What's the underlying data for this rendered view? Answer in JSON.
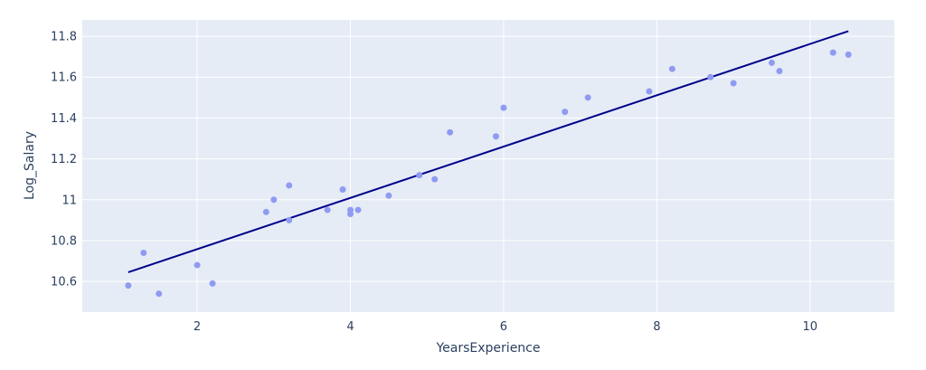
{
  "chart_data": {
    "type": "scatter",
    "title": "",
    "xlabel": "YearsExperience",
    "ylabel": "Log_Salary",
    "xlim": [
      0.5,
      11.1
    ],
    "ylim": [
      10.45,
      11.88
    ],
    "x_ticks": [
      2,
      4,
      6,
      8,
      10
    ],
    "x_tick_labels": [
      "2",
      "4",
      "6",
      "8",
      "10"
    ],
    "y_ticks": [
      10.6,
      10.8,
      11.0,
      11.2,
      11.4,
      11.6,
      11.8
    ],
    "y_tick_labels": [
      "10.6",
      "10.8",
      "11",
      "11.2",
      "11.4",
      "11.6",
      "11.8"
    ],
    "grid": true,
    "legend": "none",
    "series": [
      {
        "kind": "scatter",
        "color": "#8f9bf2",
        "points": [
          [
            1.1,
            10.58
          ],
          [
            1.3,
            10.74
          ],
          [
            1.5,
            10.54
          ],
          [
            2.0,
            10.68
          ],
          [
            2.2,
            10.59
          ],
          [
            2.9,
            10.94
          ],
          [
            3.0,
            11.0
          ],
          [
            3.2,
            11.07
          ],
          [
            3.2,
            10.9
          ],
          [
            3.7,
            10.95
          ],
          [
            3.9,
            11.05
          ],
          [
            4.0,
            10.95
          ],
          [
            4.0,
            10.93
          ],
          [
            4.1,
            10.95
          ],
          [
            4.5,
            11.02
          ],
          [
            4.9,
            11.12
          ],
          [
            5.1,
            11.1
          ],
          [
            5.3,
            11.33
          ],
          [
            5.9,
            11.31
          ],
          [
            6.0,
            11.45
          ],
          [
            6.8,
            11.43
          ],
          [
            7.1,
            11.5
          ],
          [
            7.9,
            11.53
          ],
          [
            8.2,
            11.64
          ],
          [
            8.7,
            11.6
          ],
          [
            9.0,
            11.57
          ],
          [
            9.5,
            11.67
          ],
          [
            9.6,
            11.63
          ],
          [
            10.3,
            11.72
          ],
          [
            10.5,
            11.71
          ]
        ]
      },
      {
        "kind": "line",
        "color": "#00008b",
        "points": [
          [
            1.1,
            10.645
          ],
          [
            10.5,
            11.825
          ]
        ]
      }
    ]
  }
}
